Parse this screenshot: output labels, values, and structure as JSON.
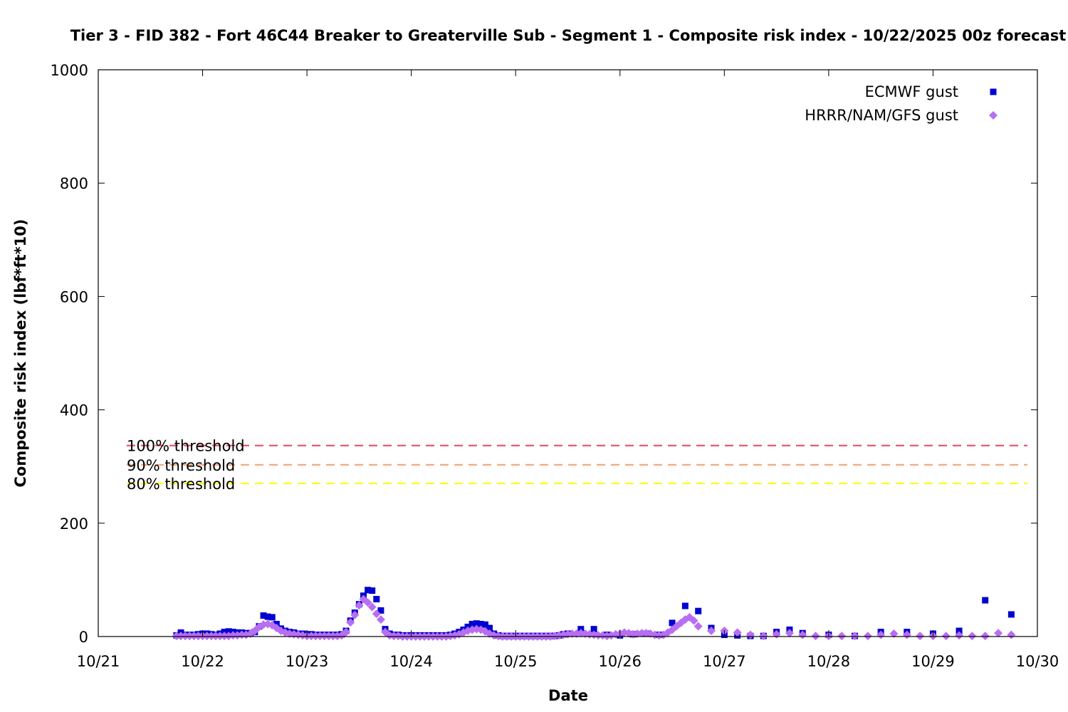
{
  "chart_data": {
    "type": "scatter",
    "title": "Tier 3 - FID 382 - Fort 46C44 Breaker to Greaterville Sub - Segment 1 - Composite risk index - 10/22/2025 00z forecast",
    "xlabel": "Date",
    "ylabel": "Composite risk index (lbf*ft*10)",
    "xlim": [
      "2025-10-21",
      "2025-10-30"
    ],
    "ylim": [
      0,
      1000
    ],
    "xticks": [
      "10/21",
      "10/22",
      "10/23",
      "10/24",
      "10/25",
      "10/26",
      "10/27",
      "10/28",
      "10/29",
      "10/30"
    ],
    "yticks": [
      "0",
      "200",
      "400",
      "600",
      "800",
      "1000"
    ],
    "legend_position": "top-right",
    "grid": false,
    "thresholds": [
      {
        "label": "100% threshold",
        "value": 337,
        "color": "#e05a6d"
      },
      {
        "label": "90% threshold",
        "value": 303,
        "color": "#f4a57a"
      },
      {
        "label": "80% threshold",
        "value": 270,
        "color": "#ffff00"
      }
    ],
    "series": [
      {
        "name": "ECMWF gust",
        "marker": "square",
        "color": "#0000d0",
        "points": [
          [
            "2025-10-21 18:00",
            2
          ],
          [
            "2025-10-21 19:00",
            7
          ],
          [
            "2025-10-21 20:00",
            3
          ],
          [
            "2025-10-21 21:00",
            3
          ],
          [
            "2025-10-21 22:00",
            3
          ],
          [
            "2025-10-21 23:00",
            4
          ],
          [
            "2025-10-22 00:00",
            5
          ],
          [
            "2025-10-22 01:00",
            5
          ],
          [
            "2025-10-22 02:00",
            4
          ],
          [
            "2025-10-22 03:00",
            3
          ],
          [
            "2025-10-22 04:00",
            5
          ],
          [
            "2025-10-22 05:00",
            8
          ],
          [
            "2025-10-22 06:00",
            9
          ],
          [
            "2025-10-22 07:00",
            8
          ],
          [
            "2025-10-22 08:00",
            7
          ],
          [
            "2025-10-22 09:00",
            7
          ],
          [
            "2025-10-22 10:00",
            6
          ],
          [
            "2025-10-22 11:00",
            6
          ],
          [
            "2025-10-22 12:00",
            8
          ],
          [
            "2025-10-22 13:00",
            18
          ],
          [
            "2025-10-22 14:00",
            37
          ],
          [
            "2025-10-22 15:00",
            35
          ],
          [
            "2025-10-22 16:00",
            34
          ],
          [
            "2025-10-22 17:00",
            22
          ],
          [
            "2025-10-22 18:00",
            14
          ],
          [
            "2025-10-22 19:00",
            10
          ],
          [
            "2025-10-22 20:00",
            8
          ],
          [
            "2025-10-22 21:00",
            7
          ],
          [
            "2025-10-22 22:00",
            5
          ],
          [
            "2025-10-22 23:00",
            5
          ],
          [
            "2025-10-23 00:00",
            4
          ],
          [
            "2025-10-23 01:00",
            4
          ],
          [
            "2025-10-23 02:00",
            3
          ],
          [
            "2025-10-23 03:00",
            3
          ],
          [
            "2025-10-23 04:00",
            3
          ],
          [
            "2025-10-23 05:00",
            3
          ],
          [
            "2025-10-23 06:00",
            3
          ],
          [
            "2025-10-23 07:00",
            3
          ],
          [
            "2025-10-23 08:00",
            4
          ],
          [
            "2025-10-23 09:00",
            10
          ],
          [
            "2025-10-23 10:00",
            28
          ],
          [
            "2025-10-23 11:00",
            42
          ],
          [
            "2025-10-23 12:00",
            57
          ],
          [
            "2025-10-23 13:00",
            72
          ],
          [
            "2025-10-23 14:00",
            82
          ],
          [
            "2025-10-23 15:00",
            81
          ],
          [
            "2025-10-23 16:00",
            66
          ],
          [
            "2025-10-23 17:00",
            46
          ],
          [
            "2025-10-23 18:00",
            13
          ],
          [
            "2025-10-23 19:00",
            5
          ],
          [
            "2025-10-23 20:00",
            3
          ],
          [
            "2025-10-23 21:00",
            3
          ],
          [
            "2025-10-23 22:00",
            2
          ],
          [
            "2025-10-23 23:00",
            2
          ],
          [
            "2025-10-24 00:00",
            2
          ],
          [
            "2025-10-24 01:00",
            2
          ],
          [
            "2025-10-24 02:00",
            2
          ],
          [
            "2025-10-24 03:00",
            2
          ],
          [
            "2025-10-24 04:00",
            2
          ],
          [
            "2025-10-24 05:00",
            2
          ],
          [
            "2025-10-24 06:00",
            2
          ],
          [
            "2025-10-24 07:00",
            2
          ],
          [
            "2025-10-24 08:00",
            2
          ],
          [
            "2025-10-24 09:00",
            3
          ],
          [
            "2025-10-24 10:00",
            5
          ],
          [
            "2025-10-24 11:00",
            8
          ],
          [
            "2025-10-24 12:00",
            12
          ],
          [
            "2025-10-24 13:00",
            17
          ],
          [
            "2025-10-24 14:00",
            22
          ],
          [
            "2025-10-24 15:00",
            23
          ],
          [
            "2025-10-24 16:00",
            22
          ],
          [
            "2025-10-24 17:00",
            21
          ],
          [
            "2025-10-24 18:00",
            15
          ],
          [
            "2025-10-24 19:00",
            5
          ],
          [
            "2025-10-24 20:00",
            2
          ],
          [
            "2025-10-24 21:00",
            1
          ],
          [
            "2025-10-24 22:00",
            1
          ],
          [
            "2025-10-24 23:00",
            1
          ],
          [
            "2025-10-25 00:00",
            1
          ],
          [
            "2025-10-25 01:00",
            1
          ],
          [
            "2025-10-25 02:00",
            1
          ],
          [
            "2025-10-25 03:00",
            1
          ],
          [
            "2025-10-25 04:00",
            1
          ],
          [
            "2025-10-25 05:00",
            1
          ],
          [
            "2025-10-25 06:00",
            1
          ],
          [
            "2025-10-25 07:00",
            1
          ],
          [
            "2025-10-25 08:00",
            1
          ],
          [
            "2025-10-25 09:00",
            1
          ],
          [
            "2025-10-25 10:00",
            2
          ],
          [
            "2025-10-25 11:00",
            4
          ],
          [
            "2025-10-25 12:00",
            5
          ],
          [
            "2025-10-25 15:00",
            13
          ],
          [
            "2025-10-25 18:00",
            13
          ],
          [
            "2025-10-25 21:00",
            3
          ],
          [
            "2025-10-26 00:00",
            2
          ],
          [
            "2025-10-26 03:00",
            4
          ],
          [
            "2025-10-26 06:00",
            5
          ],
          [
            "2025-10-26 09:00",
            3
          ],
          [
            "2025-10-26 12:00",
            24
          ],
          [
            "2025-10-26 15:00",
            54
          ],
          [
            "2025-10-26 18:00",
            45
          ],
          [
            "2025-10-26 21:00",
            15
          ],
          [
            "2025-10-27 00:00",
            3
          ],
          [
            "2025-10-27 03:00",
            2
          ],
          [
            "2025-10-27 06:00",
            1
          ],
          [
            "2025-10-27 09:00",
            1
          ],
          [
            "2025-10-27 12:00",
            8
          ],
          [
            "2025-10-27 15:00",
            12
          ],
          [
            "2025-10-27 18:00",
            6
          ],
          [
            "2025-10-28 00:00",
            3
          ],
          [
            "2025-10-28 06:00",
            1
          ],
          [
            "2025-10-28 12:00",
            8
          ],
          [
            "2025-10-28 18:00",
            8
          ],
          [
            "2025-10-29 00:00",
            5
          ],
          [
            "2025-10-29 06:00",
            10
          ],
          [
            "2025-10-29 12:00",
            64
          ],
          [
            "2025-10-29 18:00",
            39
          ]
        ]
      },
      {
        "name": "HRRR/NAM/GFS gust",
        "marker": "diamond",
        "color": "#b86ef2",
        "points": [
          [
            "2025-10-21 18:00",
            1
          ],
          [
            "2025-10-21 19:00",
            1
          ],
          [
            "2025-10-21 20:00",
            1
          ],
          [
            "2025-10-21 21:00",
            1
          ],
          [
            "2025-10-21 22:00",
            1
          ],
          [
            "2025-10-21 23:00",
            1
          ],
          [
            "2025-10-22 00:00",
            1
          ],
          [
            "2025-10-22 01:00",
            1
          ],
          [
            "2025-10-22 02:00",
            1
          ],
          [
            "2025-10-22 03:00",
            1
          ],
          [
            "2025-10-22 04:00",
            1
          ],
          [
            "2025-10-22 05:00",
            1
          ],
          [
            "2025-10-22 06:00",
            1
          ],
          [
            "2025-10-22 07:00",
            2
          ],
          [
            "2025-10-22 08:00",
            2
          ],
          [
            "2025-10-22 09:00",
            3
          ],
          [
            "2025-10-22 10:00",
            3
          ],
          [
            "2025-10-22 11:00",
            5
          ],
          [
            "2025-10-22 12:00",
            10
          ],
          [
            "2025-10-22 13:00",
            17
          ],
          [
            "2025-10-22 14:00",
            21
          ],
          [
            "2025-10-22 15:00",
            22
          ],
          [
            "2025-10-22 16:00",
            20
          ],
          [
            "2025-10-22 17:00",
            15
          ],
          [
            "2025-10-22 18:00",
            10
          ],
          [
            "2025-10-22 19:00",
            7
          ],
          [
            "2025-10-22 20:00",
            5
          ],
          [
            "2025-10-22 21:00",
            4
          ],
          [
            "2025-10-22 22:00",
            3
          ],
          [
            "2025-10-22 23:00",
            2
          ],
          [
            "2025-10-23 00:00",
            1
          ],
          [
            "2025-10-23 01:00",
            1
          ],
          [
            "2025-10-23 02:00",
            1
          ],
          [
            "2025-10-23 03:00",
            1
          ],
          [
            "2025-10-23 04:00",
            1
          ],
          [
            "2025-10-23 05:00",
            1
          ],
          [
            "2025-10-23 06:00",
            1
          ],
          [
            "2025-10-23 07:00",
            1
          ],
          [
            "2025-10-23 08:00",
            2
          ],
          [
            "2025-10-23 09:00",
            8
          ],
          [
            "2025-10-23 10:00",
            25
          ],
          [
            "2025-10-23 11:00",
            38
          ],
          [
            "2025-10-23 12:00",
            55
          ],
          [
            "2025-10-23 13:00",
            66
          ],
          [
            "2025-10-23 14:00",
            60
          ],
          [
            "2025-10-23 15:00",
            52
          ],
          [
            "2025-10-23 16:00",
            40
          ],
          [
            "2025-10-23 17:00",
            30
          ],
          [
            "2025-10-23 18:00",
            8
          ],
          [
            "2025-10-23 19:00",
            2
          ],
          [
            "2025-10-23 20:00",
            1
          ],
          [
            "2025-10-23 21:00",
            1
          ],
          [
            "2025-10-23 22:00",
            0
          ],
          [
            "2025-10-23 23:00",
            0
          ],
          [
            "2025-10-24 00:00",
            0
          ],
          [
            "2025-10-24 01:00",
            0
          ],
          [
            "2025-10-24 02:00",
            0
          ],
          [
            "2025-10-24 03:00",
            0
          ],
          [
            "2025-10-24 04:00",
            0
          ],
          [
            "2025-10-24 05:00",
            0
          ],
          [
            "2025-10-24 06:00",
            0
          ],
          [
            "2025-10-24 07:00",
            0
          ],
          [
            "2025-10-24 08:00",
            0
          ],
          [
            "2025-10-24 09:00",
            1
          ],
          [
            "2025-10-24 10:00",
            2
          ],
          [
            "2025-10-24 11:00",
            4
          ],
          [
            "2025-10-24 12:00",
            7
          ],
          [
            "2025-10-24 13:00",
            10
          ],
          [
            "2025-10-24 14:00",
            12
          ],
          [
            "2025-10-24 15:00",
            13
          ],
          [
            "2025-10-24 16:00",
            12
          ],
          [
            "2025-10-24 17:00",
            9
          ],
          [
            "2025-10-24 18:00",
            5
          ],
          [
            "2025-10-24 19:00",
            2
          ],
          [
            "2025-10-24 20:00",
            1
          ],
          [
            "2025-10-24 21:00",
            0
          ],
          [
            "2025-10-24 22:00",
            0
          ],
          [
            "2025-10-24 23:00",
            0
          ],
          [
            "2025-10-25 00:00",
            0
          ],
          [
            "2025-10-25 01:00",
            0
          ],
          [
            "2025-10-25 02:00",
            0
          ],
          [
            "2025-10-25 03:00",
            0
          ],
          [
            "2025-10-25 04:00",
            0
          ],
          [
            "2025-10-25 05:00",
            0
          ],
          [
            "2025-10-25 06:00",
            0
          ],
          [
            "2025-10-25 07:00",
            0
          ],
          [
            "2025-10-25 08:00",
            0
          ],
          [
            "2025-10-25 09:00",
            1
          ],
          [
            "2025-10-25 10:00",
            2
          ],
          [
            "2025-10-25 11:00",
            3
          ],
          [
            "2025-10-25 12:00",
            4
          ],
          [
            "2025-10-25 13:00",
            5
          ],
          [
            "2025-10-25 14:00",
            5
          ],
          [
            "2025-10-25 15:00",
            6
          ],
          [
            "2025-10-25 16:00",
            5
          ],
          [
            "2025-10-25 17:00",
            4
          ],
          [
            "2025-10-25 18:00",
            3
          ],
          [
            "2025-10-25 19:00",
            2
          ],
          [
            "2025-10-25 20:00",
            2
          ],
          [
            "2025-10-25 21:00",
            1
          ],
          [
            "2025-10-25 22:00",
            2
          ],
          [
            "2025-10-25 23:00",
            4
          ],
          [
            "2025-10-26 00:00",
            5
          ],
          [
            "2025-10-26 01:00",
            7
          ],
          [
            "2025-10-26 02:00",
            6
          ],
          [
            "2025-10-26 03:00",
            4
          ],
          [
            "2025-10-26 04:00",
            5
          ],
          [
            "2025-10-26 05:00",
            6
          ],
          [
            "2025-10-26 06:00",
            6
          ],
          [
            "2025-10-26 07:00",
            5
          ],
          [
            "2025-10-26 08:00",
            3
          ],
          [
            "2025-10-26 09:00",
            2
          ],
          [
            "2025-10-26 10:00",
            3
          ],
          [
            "2025-10-26 11:00",
            7
          ],
          [
            "2025-10-26 12:00",
            12
          ],
          [
            "2025-10-26 13:00",
            18
          ],
          [
            "2025-10-26 14:00",
            24
          ],
          [
            "2025-10-26 15:00",
            30
          ],
          [
            "2025-10-26 16:00",
            34
          ],
          [
            "2025-10-26 17:00",
            28
          ],
          [
            "2025-10-26 18:00",
            18
          ],
          [
            "2025-10-26 21:00",
            10
          ],
          [
            "2025-10-27 00:00",
            10
          ],
          [
            "2025-10-27 03:00",
            7
          ],
          [
            "2025-10-27 06:00",
            3
          ],
          [
            "2025-10-27 09:00",
            1
          ],
          [
            "2025-10-27 12:00",
            4
          ],
          [
            "2025-10-27 15:00",
            6
          ],
          [
            "2025-10-27 18:00",
            3
          ],
          [
            "2025-10-27 21:00",
            1
          ],
          [
            "2025-10-28 00:00",
            1
          ],
          [
            "2025-10-28 03:00",
            1
          ],
          [
            "2025-10-28 06:00",
            1
          ],
          [
            "2025-10-28 09:00",
            1
          ],
          [
            "2025-10-28 12:00",
            3
          ],
          [
            "2025-10-28 15:00",
            5
          ],
          [
            "2025-10-28 18:00",
            3
          ],
          [
            "2025-10-28 21:00",
            1
          ],
          [
            "2025-10-29 00:00",
            1
          ],
          [
            "2025-10-29 03:00",
            1
          ],
          [
            "2025-10-29 06:00",
            2
          ],
          [
            "2025-10-29 09:00",
            1
          ],
          [
            "2025-10-29 12:00",
            1
          ],
          [
            "2025-10-29 15:00",
            6
          ],
          [
            "2025-10-29 18:00",
            3
          ]
        ]
      }
    ]
  }
}
